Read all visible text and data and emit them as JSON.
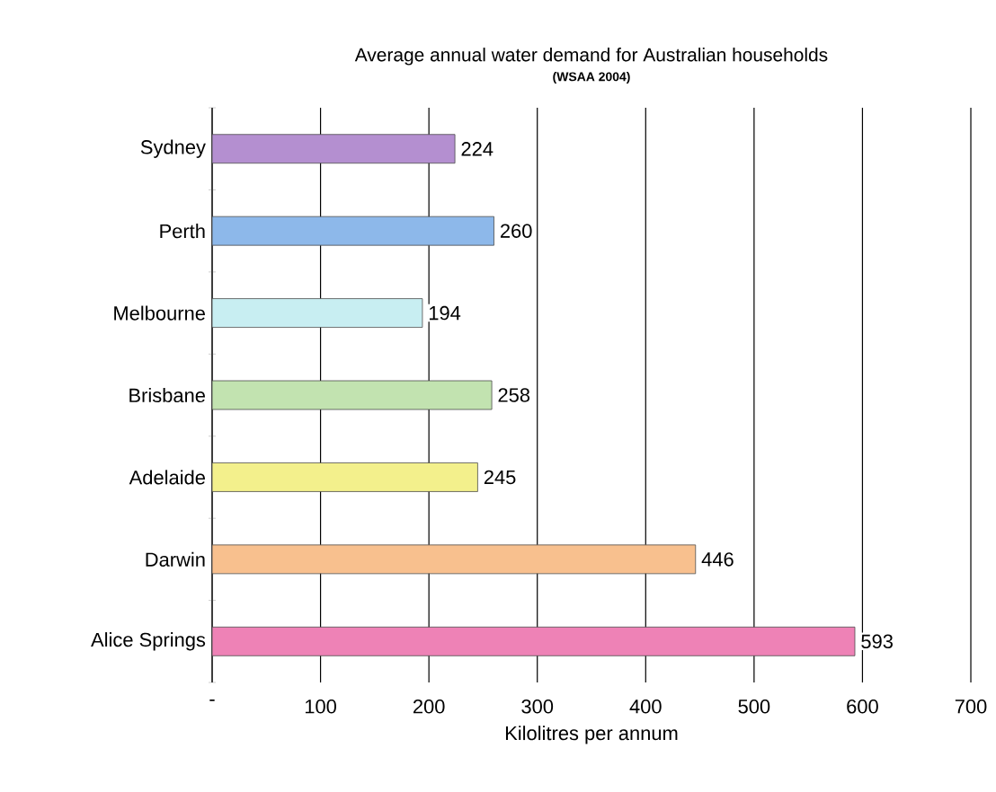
{
  "chart_data": {
    "type": "bar",
    "orientation": "horizontal",
    "title": "Average annual water demand for Australian households",
    "subtitle": "(WSAA 2004)",
    "xlabel": "Kilolitres per annum",
    "categories": [
      "Sydney",
      "Perth",
      "Melbourne",
      "Brisbane",
      "Adelaide",
      "Darwin",
      "Alice Springs"
    ],
    "values": [
      224,
      260,
      194,
      258,
      245,
      446,
      593
    ],
    "colors": [
      "#b48fd0",
      "#8db8ea",
      "#c8eef2",
      "#c2e3b0",
      "#f3f08c",
      "#f8c08e",
      "#ee82b6"
    ],
    "xlim": [
      0,
      700
    ],
    "xticks": [
      {
        "value": 0,
        "label": "-"
      },
      100,
      200,
      300,
      400,
      500,
      600,
      700
    ],
    "grid": "x",
    "data_labels": true
  }
}
